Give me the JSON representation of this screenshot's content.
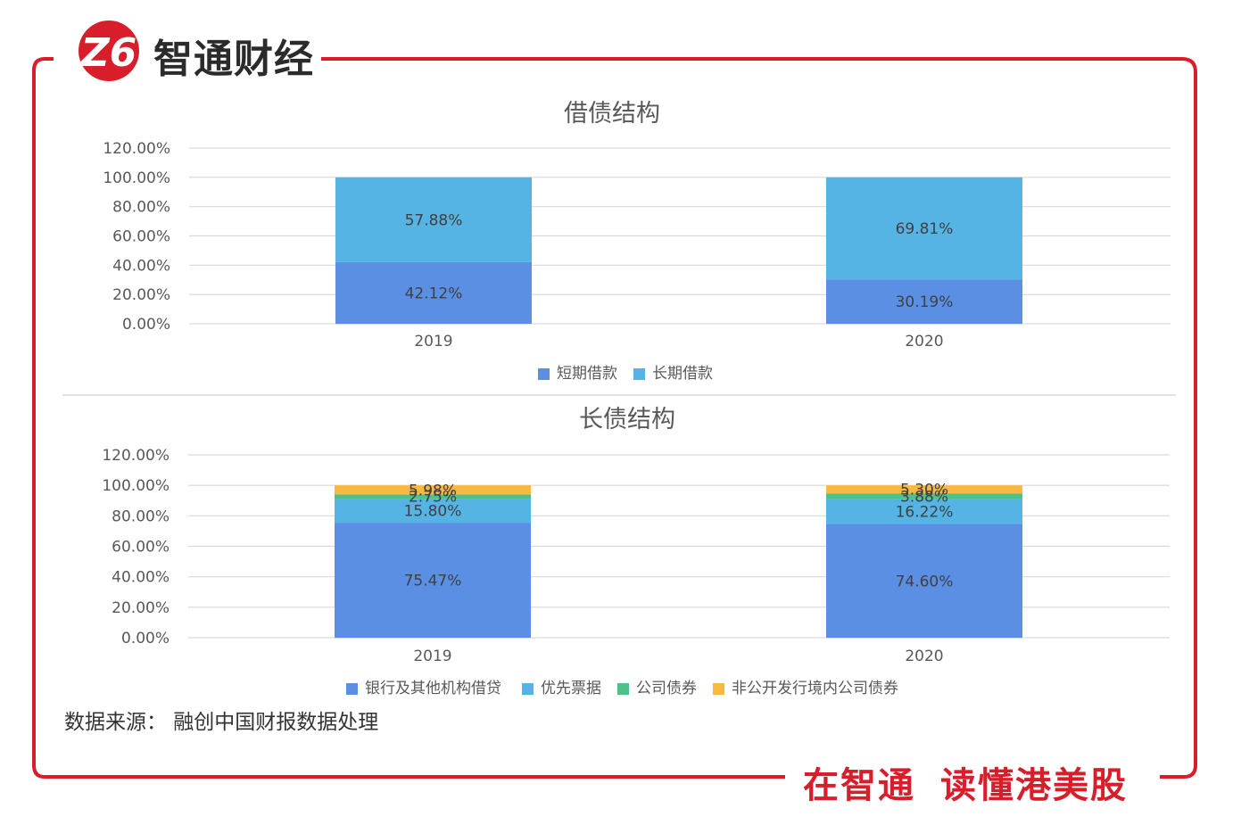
{
  "brand": {
    "logo_mark": "Z6",
    "name": "智通财经",
    "slogan_left": "在智通",
    "slogan_right": "读懂港美股",
    "accent": "#d81e2a"
  },
  "source_note": "数据来源： 融创中国财报数据处理",
  "chart_data": [
    {
      "type": "bar",
      "stacked": true,
      "title": "借债结构",
      "categories": [
        "2019",
        "2020"
      ],
      "series": [
        {
          "name": "短期借款",
          "values": [
            42.12,
            30.19
          ],
          "labels": [
            "42.12%",
            "30.19%"
          ],
          "color": "#5b8fe3"
        },
        {
          "name": "长期借款",
          "values": [
            57.88,
            69.81
          ],
          "labels": [
            "57.88%",
            "69.81%"
          ],
          "color": "#56b4e4"
        }
      ],
      "yticks": [
        "0.00%",
        "20.00%",
        "40.00%",
        "60.00%",
        "80.00%",
        "100.00%",
        "120.00%"
      ],
      "ylim": [
        0,
        120
      ],
      "grid": true,
      "legend": "bottom"
    },
    {
      "type": "bar",
      "stacked": true,
      "title": "长债结构",
      "categories": [
        "2019",
        "2020"
      ],
      "series": [
        {
          "name": "银行及其他机构借贷",
          "values": [
            75.47,
            74.6
          ],
          "labels": [
            "75.47%",
            "74.60%"
          ],
          "color": "#5b8fe3"
        },
        {
          "name": "优先票据",
          "values": [
            15.8,
            16.22
          ],
          "labels": [
            "15.80%",
            "16.22%"
          ],
          "color": "#56b4e4"
        },
        {
          "name": "公司债券",
          "values": [
            2.75,
            3.88
          ],
          "labels": [
            "2.75%",
            "3.88%"
          ],
          "color": "#4cc18a"
        },
        {
          "name": "非公开发行境内公司债券",
          "values": [
            5.98,
            5.3
          ],
          "labels": [
            "5.98%",
            "5.30%"
          ],
          "color": "#f9b941"
        }
      ],
      "yticks": [
        "0.00%",
        "20.00%",
        "40.00%",
        "60.00%",
        "80.00%",
        "100.00%",
        "120.00%"
      ],
      "ylim": [
        0,
        120
      ],
      "grid": true,
      "legend": "bottom"
    }
  ]
}
